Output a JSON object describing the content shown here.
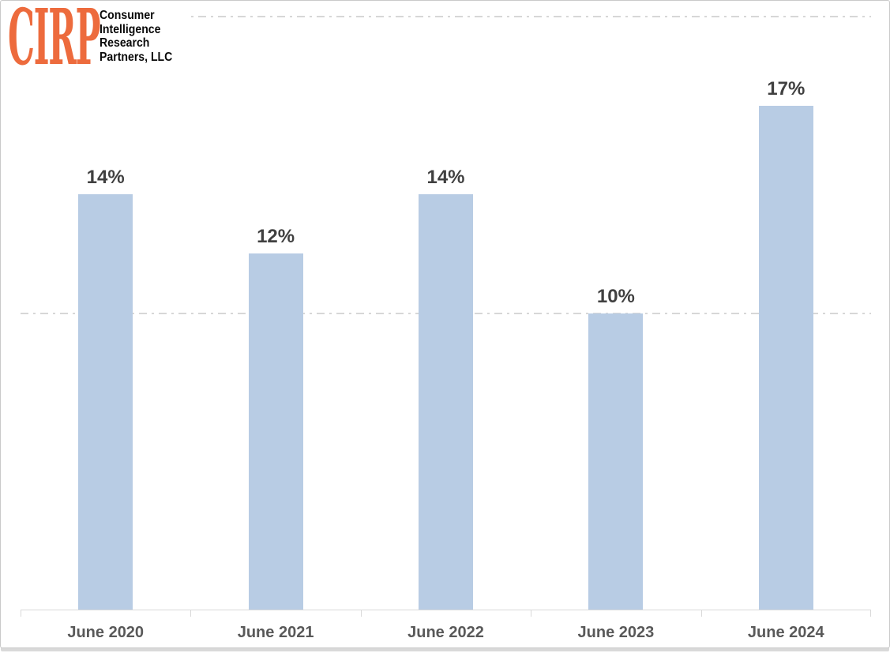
{
  "logo": {
    "acronym": "CIRP",
    "name_lines": [
      "Consumer",
      "Intelligence",
      "Research",
      "Partners, LLC"
    ]
  },
  "colors": {
    "logo_orange": "#ed6b3d",
    "bar_fill": "#b8cce4",
    "gridline": "#d7d7d7",
    "axis_line": "#d9d9d9",
    "value_label_text": "#404040",
    "axis_label_text": "#595959"
  },
  "chart_data": {
    "type": "bar",
    "title": "",
    "xlabel": "",
    "ylabel": "",
    "categories": [
      "June 2020",
      "June 2021",
      "June 2022",
      "June 2023",
      "June 2024"
    ],
    "values": [
      14,
      12,
      14,
      10,
      17
    ],
    "value_labels": [
      "14%",
      "12%",
      "14%",
      "10%",
      "17%"
    ],
    "ylim": [
      0,
      20
    ],
    "gridlines_at": [
      10,
      20
    ],
    "gridline_style": "dash-dot",
    "grid": true,
    "legend_position": "none"
  }
}
